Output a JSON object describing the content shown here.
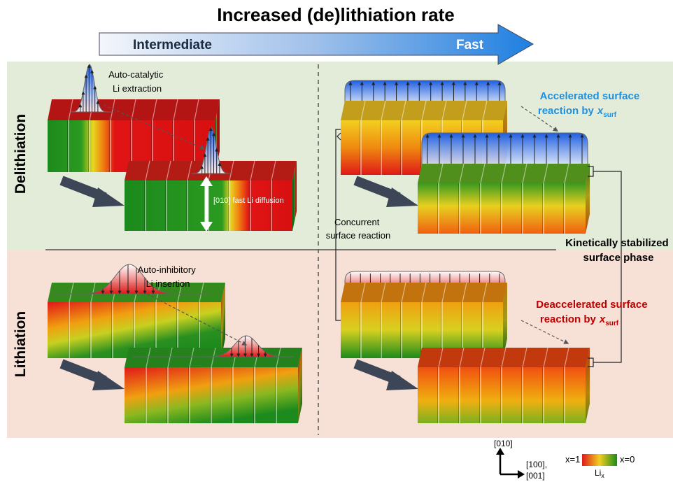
{
  "header": {
    "title": "Increased (de)lithiation rate",
    "arrow_labels": [
      "Intermediate",
      "Fast"
    ]
  },
  "rows": [
    "Delithiation",
    "Lithiation"
  ],
  "annotations": {
    "auto_catalytic": [
      "Auto-catalytic",
      "Li extraction"
    ],
    "fast_diffusion": "[010] fast Li diffusion",
    "accelerated": {
      "line1": "Accelerated surface",
      "line2": "reaction by",
      "var": "x",
      "sub": "surf"
    },
    "concurrent": [
      "Concurrent",
      "surface reaction"
    ],
    "kinetically": [
      "Kinetically stabilized",
      "surface phase"
    ],
    "auto_inhibitory": [
      "Auto-inhibitory",
      "Li insertion"
    ],
    "deaccelerated": {
      "line1": "Deaccelerated surface",
      "line2": "reaction by",
      "var": "x",
      "sub": "surf"
    }
  },
  "legend": {
    "left": "x=1",
    "right": "x=0",
    "label": "Li",
    "label_sub": "x"
  },
  "axes": {
    "up": "[010]",
    "right": [
      "[100],",
      "[001]"
    ]
  }
}
